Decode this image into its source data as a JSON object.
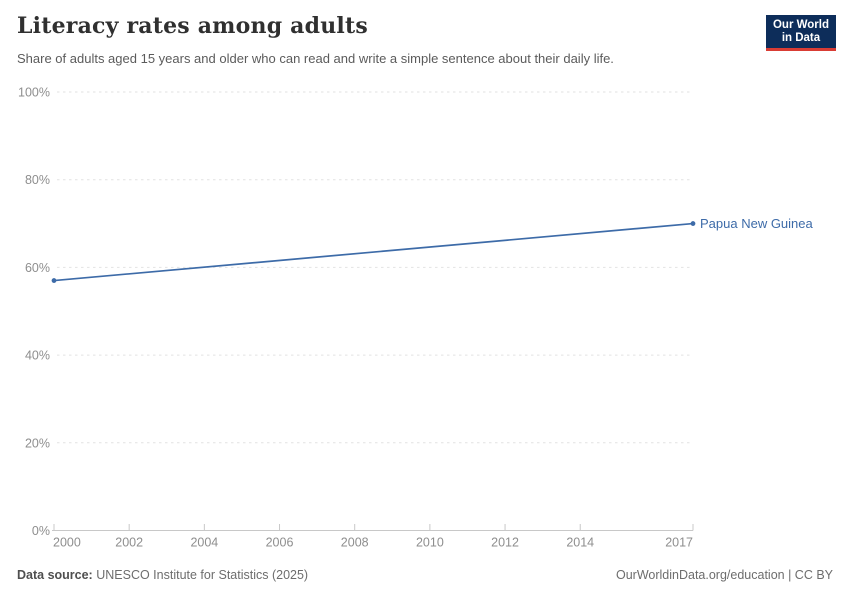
{
  "header": {
    "title": "Literacy rates among adults",
    "subtitle": "Share of adults aged 15 years and older who can read and write a simple sentence about their daily life.",
    "logo": {
      "line1": "Our World",
      "line2": "in Data",
      "bg": "#0d2d5a",
      "stripe": "#d93c34"
    }
  },
  "chart_data": {
    "type": "line",
    "title": "Literacy rates among adults",
    "xlabel": "",
    "ylabel": "",
    "xlim": [
      2000,
      2017
    ],
    "ylim": [
      0,
      100
    ],
    "grid": "horizontal-dashed",
    "xticks": [
      2000,
      2002,
      2004,
      2006,
      2008,
      2010,
      2012,
      2014,
      2017
    ],
    "xtick_labels": [
      "2000",
      "2002",
      "2004",
      "2006",
      "2008",
      "2010",
      "2012",
      "2014",
      "2017"
    ],
    "yticks": [
      0,
      20,
      40,
      60,
      80,
      100
    ],
    "ytick_labels": [
      "0%",
      "20%",
      "40%",
      "60%",
      "80%",
      "100%"
    ],
    "legend_position": "end-of-line-label",
    "series": [
      {
        "name": "Papua New Guinea",
        "color": "#3d6ba8",
        "points": [
          [
            2000,
            57
          ],
          [
            2017,
            70
          ]
        ]
      }
    ]
  },
  "footer": {
    "source_label": "Data source:",
    "source_text": "UNESCO Institute for Statistics (2025)",
    "rights": "OurWorldinData.org/education | CC BY"
  },
  "colors": {
    "background": "#ffffff",
    "title_text": "#303030",
    "subtitle_text": "#5b5b5b",
    "axis_text": "#8e8e8e",
    "gridline": "#e2e2e2",
    "axis_line": "#c8c8c8",
    "series_blue": "#3d6ba8",
    "logo_bg": "#0d2d5a",
    "logo_stripe": "#d93c34",
    "footer_text": "#6d6d6d"
  }
}
